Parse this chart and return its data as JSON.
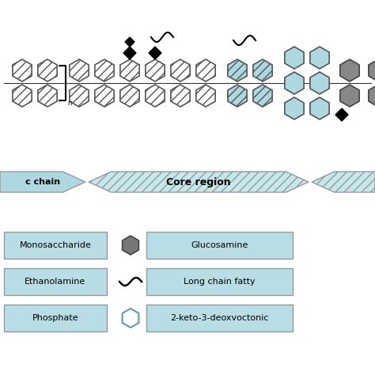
{
  "bg_color": "#ffffff",
  "light_blue": "#add8e0",
  "light_blue_arrow": "#c5e8ed",
  "light_blue_legend": "#b8dde4",
  "arrow_core_label": "Core region",
  "arrow_chain_label": "c chain",
  "legend_items_left": [
    "Monosaccharide",
    "Ethanolamine",
    "Phosphate"
  ],
  "legend_items_right": [
    "Glucosamine",
    "Long chain fatty",
    "2-keto-3-deoxvoctonic"
  ],
  "hex_hatch_fc": "#ffffff",
  "hex_blue_fc": "#add8e0",
  "hex_gray_fc": "#808080",
  "hex_edge": "#444444",
  "hex_blue_hatch_fc": "#add8e0",
  "diamond_color": "#111111",
  "line_color": "#222222"
}
